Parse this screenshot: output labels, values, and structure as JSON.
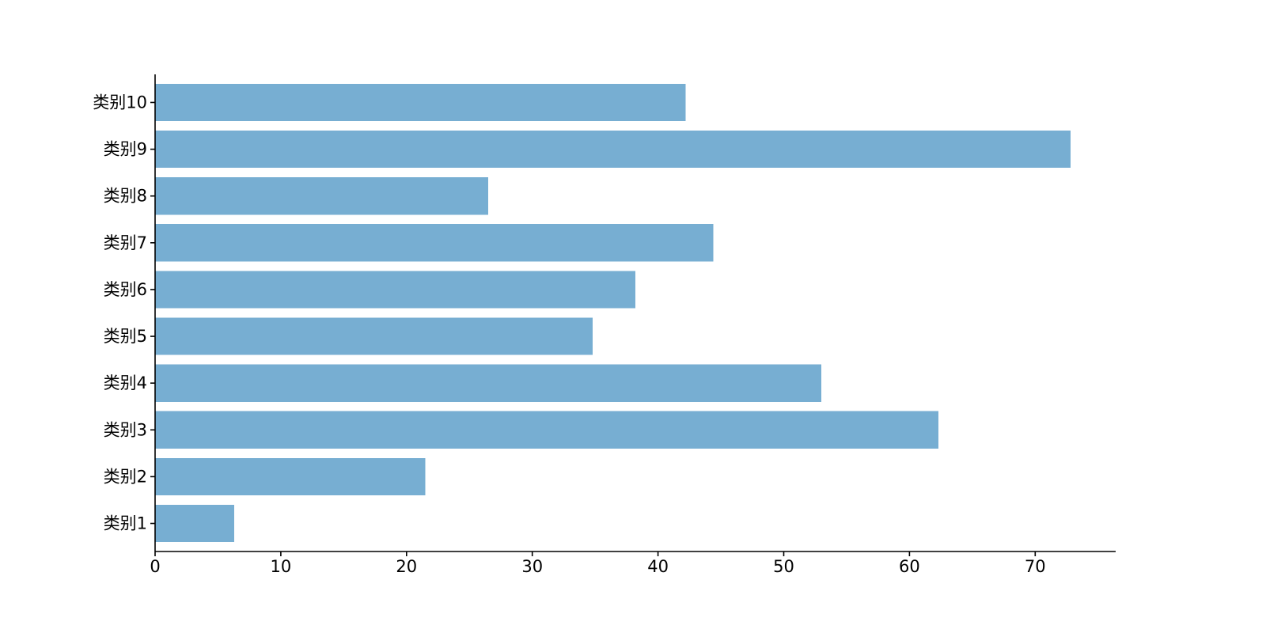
{
  "chart_data": {
    "type": "bar",
    "orientation": "horizontal",
    "title": "",
    "xlabel": "",
    "ylabel": "",
    "categories": [
      "类别1",
      "类别2",
      "类别3",
      "类别4",
      "类别5",
      "类别6",
      "类别7",
      "类别8",
      "类别9",
      "类别10"
    ],
    "values": [
      6.3,
      21.5,
      62.3,
      53.0,
      34.8,
      38.2,
      44.4,
      26.5,
      72.8,
      42.2
    ],
    "xlim": [
      0,
      76.4
    ],
    "xticks": [
      0,
      10,
      20,
      30,
      40,
      50,
      60,
      70
    ],
    "grid": false,
    "legend": "none",
    "bar_color": "#77aed2",
    "axis_color": "#000000"
  }
}
